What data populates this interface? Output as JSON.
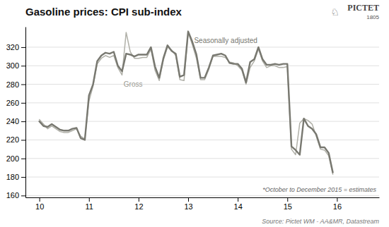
{
  "chart_data": {
    "type": "line",
    "title": "Gasoline prices: CPI sub-index",
    "x": [
      10.0,
      10.083,
      10.167,
      10.25,
      10.333,
      10.417,
      10.5,
      10.583,
      10.667,
      10.75,
      10.833,
      10.917,
      11.0,
      11.083,
      11.167,
      11.25,
      11.333,
      11.417,
      11.5,
      11.583,
      11.667,
      11.75,
      11.833,
      11.917,
      12.0,
      12.083,
      12.167,
      12.25,
      12.333,
      12.417,
      12.5,
      12.583,
      12.667,
      12.75,
      12.833,
      12.917,
      13.0,
      13.083,
      13.167,
      13.25,
      13.333,
      13.417,
      13.5,
      13.583,
      13.667,
      13.75,
      13.833,
      13.917,
      14.0,
      14.083,
      14.167,
      14.25,
      14.333,
      14.417,
      14.5,
      14.583,
      14.667,
      14.75,
      14.833,
      14.917,
      15.0,
      15.083,
      15.167,
      15.25,
      15.333,
      15.417,
      15.5,
      15.583,
      15.667,
      15.75,
      15.833,
      15.917
    ],
    "series": [
      {
        "name": "Gross",
        "color": "#b0b0a8",
        "values": [
          242,
          237,
          232,
          235,
          232,
          229,
          228,
          228,
          230,
          232,
          224,
          221,
          262,
          278,
          302,
          308,
          311,
          309,
          311,
          298,
          290,
          336,
          315,
          308,
          308,
          309,
          309,
          318,
          295,
          284,
          306,
          320,
          317,
          311,
          285,
          284,
          336,
          323,
          308,
          285,
          285,
          296,
          310,
          310,
          310,
          309,
          304,
          303,
          300,
          295,
          280,
          298,
          305,
          318,
          305,
          298,
          300,
          300,
          298,
          298,
          299,
          210,
          204,
          238,
          243,
          241,
          237,
          224,
          210,
          209,
          203,
          183
        ]
      },
      {
        "name": "Seasonally adjusted",
        "color": "#787870",
        "values": [
          240,
          235,
          234,
          237,
          234,
          231,
          230,
          230,
          232,
          233,
          222,
          220,
          268,
          280,
          305,
          311,
          314,
          313,
          315,
          300,
          294,
          313,
          312,
          310,
          312,
          312,
          312,
          320,
          299,
          287,
          308,
          322,
          316,
          313,
          288,
          290,
          337,
          326,
          312,
          287,
          287,
          298,
          311,
          312,
          313,
          311,
          303,
          302,
          302,
          297,
          282,
          304,
          307,
          320,
          307,
          301,
          301,
          302,
          301,
          302,
          302,
          213,
          209,
          204,
          243,
          235,
          232,
          226,
          212,
          212,
          206,
          185
        ]
      }
    ],
    "xlim": [
      9.72,
      16.85
    ],
    "xticks": [
      10,
      11,
      12,
      13,
      14,
      15,
      16
    ],
    "ylim": [
      158,
      342
    ],
    "yticks": [
      160,
      180,
      200,
      220,
      240,
      260,
      280,
      300,
      320
    ],
    "grid": true,
    "annotations": [
      {
        "text": "Seasonally adjusted",
        "x": 13.12,
        "y": 323
      },
      {
        "text": "Gross",
        "x": 11.7,
        "y": 276
      }
    ],
    "footnote": "*October to December 2015 = estimates",
    "source": "Source: Pictet WM - AA&MR, Datastream",
    "branding": [
      "PICTET",
      "1805",
      "♘"
    ]
  }
}
